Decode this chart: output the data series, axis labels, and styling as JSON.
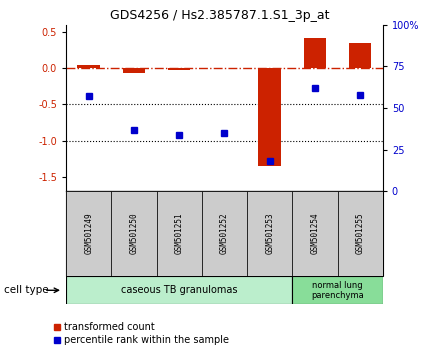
{
  "title": "GDS4256 / Hs2.385787.1.S1_3p_at",
  "samples": [
    "GSM501249",
    "GSM501250",
    "GSM501251",
    "GSM501252",
    "GSM501253",
    "GSM501254",
    "GSM501255"
  ],
  "transformed_count": [
    0.04,
    -0.06,
    -0.02,
    0.0,
    -1.35,
    0.42,
    0.35
  ],
  "percentile_rank": [
    57,
    37,
    34,
    35,
    18,
    62,
    58
  ],
  "ylim_left": [
    -1.7,
    0.6
  ],
  "yticks_left": [
    0.5,
    0.0,
    -0.5,
    -1.0,
    -1.5
  ],
  "yticks_right_vals": [
    100,
    75,
    50,
    25,
    0
  ],
  "yticks_right_labels": [
    "100%",
    "75",
    "50",
    "25",
    "0"
  ],
  "group1_label": "caseous TB granulomas",
  "group2_label": "normal lung\nparenchyma",
  "cell_type_label": "cell type",
  "legend_red": "transformed count",
  "legend_blue": "percentile rank within the sample",
  "bar_color": "#cc2200",
  "dot_color": "#0000cc",
  "dashdot_color": "#cc2200",
  "group1_bg": "#bbeecc",
  "group2_bg": "#88dd99",
  "sample_box_bg": "#cccccc",
  "bar_width": 0.5
}
